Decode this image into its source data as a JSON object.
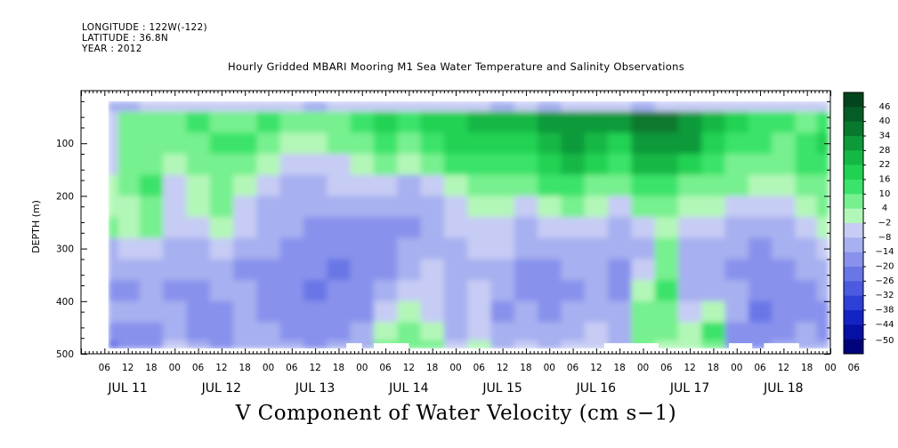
{
  "header": {
    "longitude": "LONGITUDE : 122W(-122)",
    "latitude": "LATITUDE : 36.8N",
    "year": "YEAR : 2012"
  },
  "chart_data": {
    "type": "heatmap",
    "title": "Hourly Gridded MBARI Mooring M1 Sea Water Temperature and Salinity Observations",
    "xlabel": "V Component of Water Velocity (cm s−1)",
    "ylabel": "DEPTH (m)",
    "x_tick_labels": [
      "06",
      "12",
      "18",
      "00",
      "06",
      "12",
      "18",
      "00",
      "06",
      "12",
      "18",
      "00",
      "06",
      "12",
      "18",
      "00",
      "06",
      "12",
      "18",
      "00",
      "06",
      "12",
      "18",
      "00",
      "06",
      "12",
      "18",
      "00",
      "06",
      "12",
      "18",
      "00",
      "06"
    ],
    "x_day_labels": [
      "JUL 11",
      "JUL 12",
      "JUL 13",
      "JUL 14",
      "JUL 15",
      "JUL 16",
      "JUL 17",
      "JUL 18"
    ],
    "x_range_hours": [
      0,
      192
    ],
    "x_major_tick_every_hours": 6,
    "y_ticks": [
      100,
      200,
      300,
      400,
      500
    ],
    "y_range": [
      0,
      500
    ],
    "y_inverted": true,
    "data_depth_range": [
      20,
      490
    ],
    "data_start_hour": 7,
    "colorbar": {
      "labels": [
        "46",
        "40",
        "34",
        "28",
        "22",
        "16",
        "10",
        "4",
        "-2",
        "-8",
        "-14",
        "-20",
        "-26",
        "-32",
        "-38",
        "-44",
        "-50"
      ],
      "min": -50,
      "max": 50,
      "colors_high_to_low": [
        "#02451d",
        "#045d25",
        "#08782f",
        "#0d9a3a",
        "#15b845",
        "#21d252",
        "#3be36a",
        "#77f08f",
        "#b3f7b8",
        "#c6ccf4",
        "#a7b0f0",
        "#8892ec",
        "#6976e6",
        "#4b5adf",
        "#2c3fd6",
        "#1424c4",
        "#0610a5",
        "#01037a"
      ]
    },
    "value_grid_note": "hours (rows of ~6h) x depth bands (~20 to 490 m); values in cm/s",
    "value_grid_depths": [
      20,
      60,
      100,
      140,
      180,
      220,
      260,
      300,
      340,
      380,
      420,
      460,
      490
    ],
    "value_grid_hours": [
      7,
      12,
      18,
      24,
      30,
      36,
      42,
      48,
      54,
      60,
      66,
      72,
      78,
      84,
      90,
      96,
      102,
      108,
      114,
      120,
      126,
      132,
      138,
      144,
      150,
      156,
      162,
      168,
      174,
      180,
      186,
      191
    ],
    "value_grid": [
      [
        -8,
        0,
        -4,
        -2,
        4,
        2,
        8,
        -6,
        -10,
        -14,
        -10,
        -16,
        -18
      ],
      [
        -6,
        6,
        10,
        8,
        6,
        4,
        2,
        -4,
        -8,
        -12,
        -10,
        -14,
        -12
      ],
      [
        -4,
        8,
        6,
        10,
        12,
        8,
        6,
        -2,
        -6,
        -10,
        -8,
        -12,
        -14
      ],
      [
        -2,
        10,
        8,
        4,
        0,
        -2,
        -4,
        -8,
        -10,
        -12,
        -8,
        -6,
        -4
      ],
      [
        -4,
        12,
        10,
        6,
        2,
        2,
        -2,
        -6,
        -8,
        -14,
        -14,
        -12,
        -10
      ],
      [
        -2,
        8,
        14,
        10,
        8,
        6,
        4,
        -2,
        -6,
        -10,
        -12,
        -14,
        -16
      ],
      [
        -4,
        10,
        12,
        8,
        4,
        0,
        -4,
        -8,
        -12,
        -10,
        -6,
        -8,
        -10
      ],
      [
        -2,
        12,
        8,
        2,
        -2,
        -6,
        -8,
        -10,
        -12,
        -14,
        -12,
        -10,
        -8
      ],
      [
        -4,
        10,
        4,
        -2,
        -6,
        -8,
        -10,
        -12,
        -14,
        -16,
        -14,
        -12,
        -10
      ],
      [
        -6,
        8,
        2,
        -4,
        -8,
        -10,
        -12,
        -14,
        -16,
        -18,
        -16,
        -14,
        -12
      ],
      [
        -2,
        10,
        6,
        0,
        -4,
        -10,
        -14,
        -16,
        -18,
        -16,
        -14,
        -12,
        -10
      ],
      [
        0,
        14,
        10,
        4,
        -2,
        -8,
        -12,
        -14,
        -16,
        -14,
        -12,
        -10,
        -8
      ],
      [
        -2,
        18,
        14,
        8,
        -4,
        -10,
        -14,
        -16,
        -12,
        -8,
        -4,
        2,
        6
      ],
      [
        -4,
        16,
        10,
        2,
        -6,
        -10,
        -12,
        -10,
        -6,
        -2,
        4,
        10,
        8
      ],
      [
        -2,
        20,
        16,
        10,
        0,
        -6,
        -8,
        -6,
        -4,
        -2,
        0,
        4,
        6
      ],
      [
        -4,
        22,
        20,
        14,
        4,
        -2,
        -4,
        -6,
        -8,
        -10,
        -8,
        -6,
        -4
      ],
      [
        -2,
        24,
        18,
        12,
        8,
        2,
        -2,
        -4,
        -6,
        -4,
        -2,
        0,
        2
      ],
      [
        -6,
        26,
        22,
        16,
        10,
        4,
        0,
        -4,
        -8,
        -10,
        -12,
        -8,
        -6
      ],
      [
        -4,
        24,
        20,
        12,
        6,
        -2,
        -6,
        -10,
        -12,
        -14,
        -10,
        -6,
        -4
      ],
      [
        -6,
        30,
        26,
        20,
        12,
        4,
        -4,
        -10,
        -14,
        -16,
        -12,
        -8,
        -6
      ],
      [
        -4,
        32,
        28,
        24,
        16,
        8,
        0,
        -6,
        -10,
        -12,
        -10,
        -6,
        -4
      ],
      [
        -2,
        30,
        26,
        18,
        10,
        2,
        -4,
        -8,
        -10,
        -8,
        -6,
        -4,
        -2
      ],
      [
        -4,
        28,
        22,
        16,
        8,
        0,
        -6,
        -10,
        -12,
        -14,
        -10,
        -8,
        -6
      ],
      [
        -6,
        34,
        30,
        24,
        14,
        6,
        -2,
        -6,
        -2,
        4,
        8,
        10,
        6
      ],
      [
        -4,
        36,
        32,
        26,
        16,
        8,
        2,
        6,
        10,
        12,
        10,
        8,
        4
      ],
      [
        -2,
        30,
        28,
        20,
        10,
        4,
        -2,
        -6,
        -8,
        -6,
        -2,
        2,
        4
      ],
      [
        -4,
        26,
        20,
        14,
        8,
        2,
        -4,
        -8,
        -10,
        -6,
        4,
        12,
        10
      ],
      [
        -2,
        20,
        16,
        10,
        6,
        0,
        -6,
        -10,
        -12,
        -10,
        -8,
        -14,
        -16
      ],
      [
        -4,
        16,
        12,
        8,
        2,
        -4,
        -8,
        -12,
        -14,
        -16,
        -18,
        -16,
        -14
      ],
      [
        -2,
        12,
        10,
        6,
        2,
        -2,
        -6,
        -10,
        -12,
        -14,
        -14,
        -12,
        -10
      ],
      [
        -4,
        10,
        14,
        16,
        8,
        2,
        -4,
        -8,
        -10,
        -12,
        -12,
        -10,
        -8
      ],
      [
        -2,
        12,
        18,
        14,
        10,
        6,
        2,
        -2,
        -6,
        -10,
        -12,
        -12,
        -10
      ]
    ],
    "blank_data_gaps_at_bottom_hours": [
      [
        68,
        72
      ],
      [
        75,
        84
      ],
      [
        134,
        148
      ],
      [
        166,
        172
      ],
      [
        175,
        184
      ]
    ]
  }
}
